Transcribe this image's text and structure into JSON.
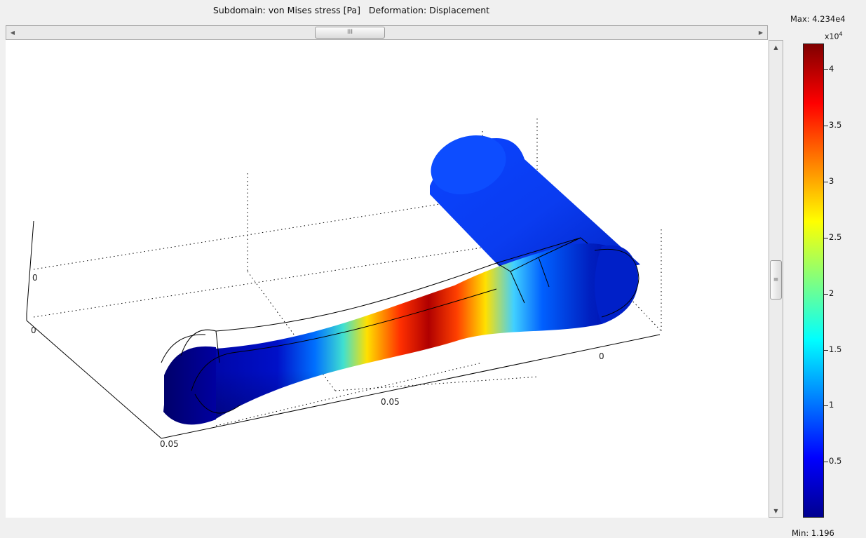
{
  "plot": {
    "title": "Subdomain: von Mises stress [Pa]   Deformation: Displacement",
    "axis_labels": {
      "z_top": "0",
      "y_left": "0",
      "x_mid": "0.05",
      "y_corner": "0.05",
      "x_right": "0"
    }
  },
  "legend": {
    "max_label": "Max: 4.234e4",
    "min_label": "Min: 1.196",
    "exponent_base": "x10",
    "exponent_power": "4",
    "ticks": [
      "4",
      "3.5",
      "3",
      "2.5",
      "2",
      "1.5",
      "1",
      "0.5"
    ],
    "colormap": "jet",
    "colors": {
      "high": "#800000",
      "mid": "#80ff80",
      "low": "#00008f"
    }
  },
  "scrollbars": {
    "thumb_grip": "III",
    "vertical_grip": "≡"
  }
}
